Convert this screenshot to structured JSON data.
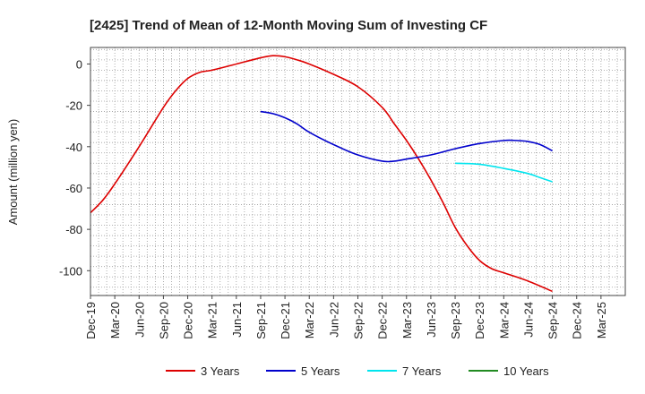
{
  "chart_data": {
    "type": "line",
    "title": "[2425]  Trend of Mean of 12-Month Moving Sum of Investing CF",
    "xlabel": "",
    "ylabel": "Amount (million yen)",
    "ylim": [
      -112,
      8
    ],
    "yticks": [
      0,
      -20,
      -40,
      -60,
      -80,
      -100
    ],
    "x_range": [
      0,
      22
    ],
    "categories": [
      "Dec-19",
      "Mar-20",
      "Jun-20",
      "Sep-20",
      "Dec-20",
      "Mar-21",
      "Jun-21",
      "Sep-21",
      "Dec-21",
      "Mar-22",
      "Jun-22",
      "Sep-22",
      "Dec-22",
      "Mar-23",
      "Jun-23",
      "Sep-23",
      "Dec-23",
      "Mar-24",
      "Jun-24",
      "Sep-24",
      "Dec-24",
      "Mar-25"
    ],
    "grid": true,
    "legend_position": "bottom",
    "series": [
      {
        "name": "3 Years",
        "color": "#dd0000",
        "x": [
          0,
          0.5,
          1,
          2,
          3,
          3.5,
          4,
          4.5,
          5,
          6,
          7,
          7.5,
          8,
          8.5,
          9,
          10,
          11,
          12,
          12.5,
          13,
          13.5,
          14,
          14.5,
          15,
          15.5,
          16,
          16.5,
          17,
          18,
          19
        ],
        "values": [
          -72,
          -66,
          -58,
          -40,
          -21,
          -13,
          -7,
          -4,
          -3,
          0,
          3,
          4,
          3.5,
          2,
          0,
          -5,
          -11,
          -21,
          -29,
          -37,
          -46,
          -56,
          -67,
          -79,
          -88,
          -95,
          -99,
          -101,
          -105,
          -110
        ]
      },
      {
        "name": "5 Years",
        "color": "#0000cc",
        "x": [
          7,
          7.5,
          8,
          8.5,
          9,
          10,
          11,
          12,
          12.5,
          13,
          14,
          15,
          16,
          17,
          17.5,
          18,
          18.5,
          19
        ],
        "values": [
          -23,
          -24,
          -26,
          -29,
          -33,
          -39,
          -44,
          -47,
          -47,
          -46,
          -44,
          -41,
          -38.5,
          -37,
          -37,
          -37.5,
          -39,
          -42
        ]
      },
      {
        "name": "7 Years",
        "color": "#00e5ee",
        "x": [
          15,
          16,
          17,
          18,
          18.5,
          19
        ],
        "values": [
          -48,
          -48.5,
          -50.5,
          -53,
          -55,
          -57
        ]
      },
      {
        "name": "10 Years",
        "color": "#228b22",
        "x": [],
        "values": []
      }
    ]
  }
}
